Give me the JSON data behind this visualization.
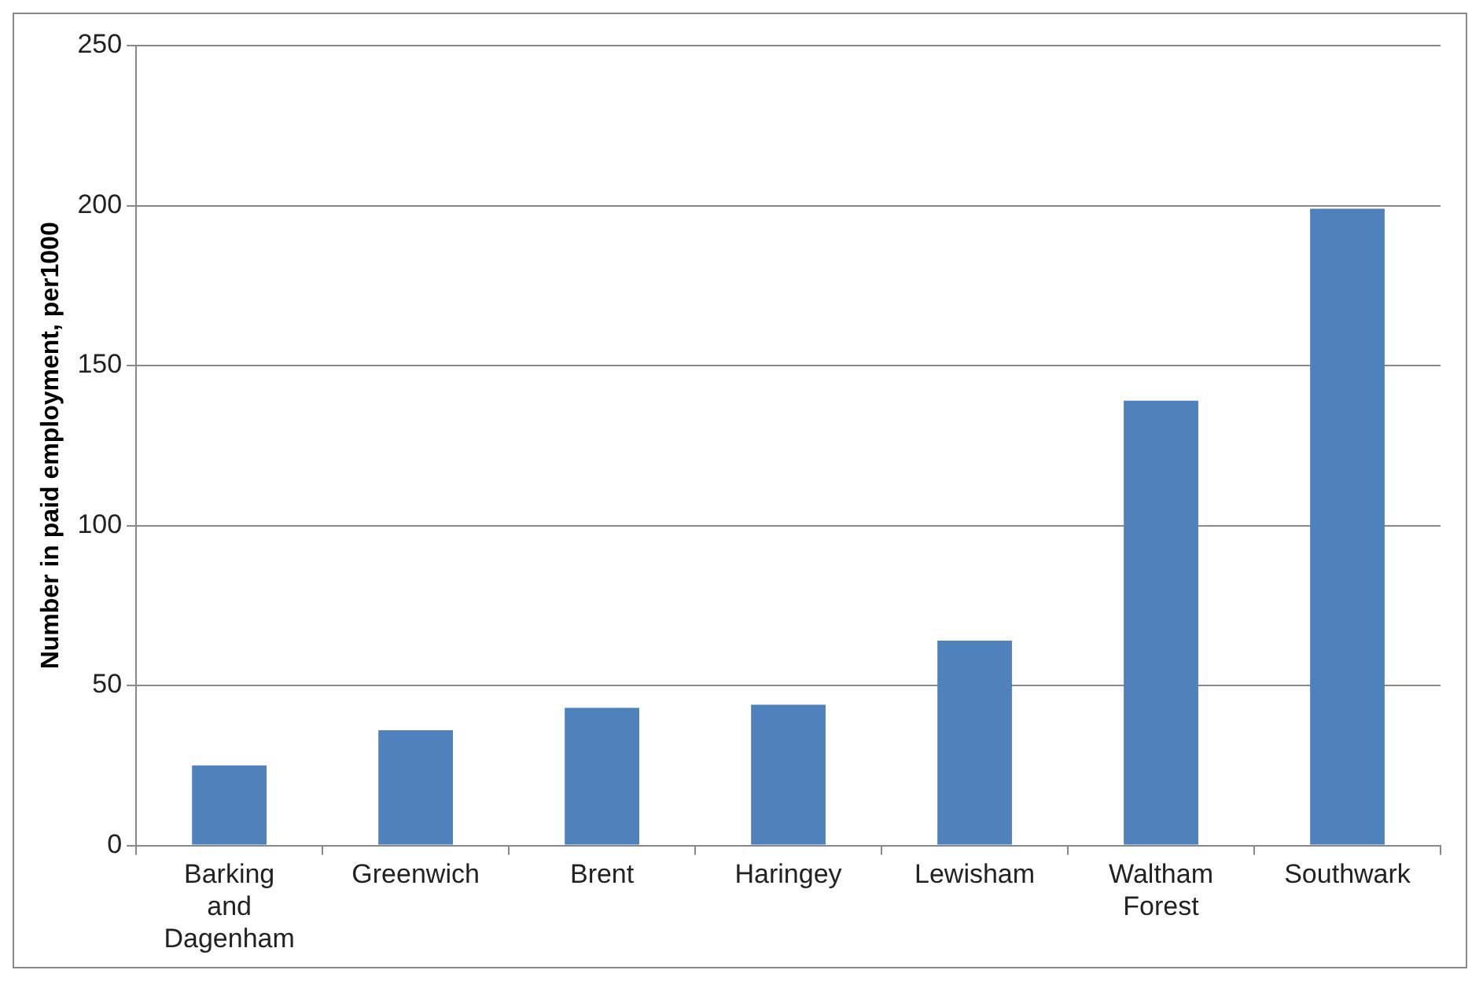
{
  "chart_data": {
    "type": "bar",
    "ylabel": "Number in paid employment, per1000",
    "categories": [
      "Barking and Dagenham",
      "Greenwich",
      "Brent",
      "Haringey",
      "Lewisham",
      "Waltham Forest",
      "Southwark"
    ],
    "values": [
      25,
      36,
      43,
      44,
      64,
      139,
      199
    ],
    "color": "#4f81bd",
    "ylim": [
      0,
      250
    ],
    "yticks": [
      0,
      50,
      100,
      150,
      200,
      250
    ],
    "grid": "y"
  }
}
